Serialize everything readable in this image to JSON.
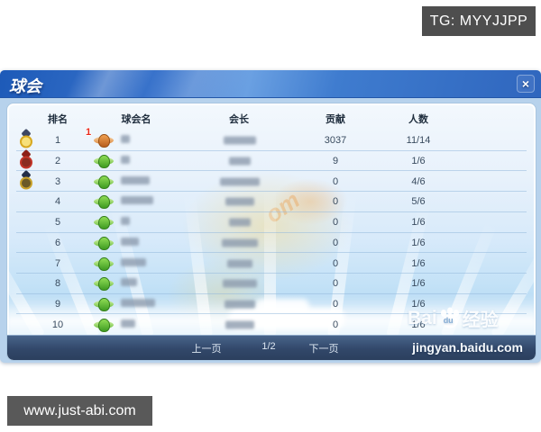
{
  "overlays": {
    "tg_label": "TG: MYYJJPP",
    "site_label": "www.just-abi.com"
  },
  "window": {
    "title": "球会",
    "close_label": "×"
  },
  "table": {
    "headers": [
      "排名",
      "球会名",
      "会长",
      "贡献",
      "人数"
    ],
    "rows": [
      {
        "rank": "1",
        "medal": "gold",
        "badge": "1",
        "icon": "orange",
        "name_blur_w": 10,
        "president_blur_w": 36,
        "contribution": "3037",
        "members": "11/14"
      },
      {
        "rank": "2",
        "medal": "red",
        "badge": "",
        "icon": "green",
        "name_blur_w": 10,
        "president_blur_w": 24,
        "contribution": "9",
        "members": "1/6"
      },
      {
        "rank": "3",
        "medal": "navy",
        "badge": "",
        "icon": "green",
        "name_blur_w": 32,
        "president_blur_w": 44,
        "contribution": "0",
        "members": "4/6"
      },
      {
        "rank": "4",
        "medal": "",
        "badge": "",
        "icon": "green",
        "name_blur_w": 36,
        "president_blur_w": 32,
        "contribution": "0",
        "members": "5/6"
      },
      {
        "rank": "5",
        "medal": "",
        "badge": "",
        "icon": "green",
        "name_blur_w": 10,
        "president_blur_w": 24,
        "contribution": "0",
        "members": "1/6"
      },
      {
        "rank": "6",
        "medal": "",
        "badge": "",
        "icon": "green",
        "name_blur_w": 20,
        "president_blur_w": 40,
        "contribution": "0",
        "members": "1/6"
      },
      {
        "rank": "7",
        "medal": "",
        "badge": "",
        "icon": "green",
        "name_blur_w": 28,
        "president_blur_w": 28,
        "contribution": "0",
        "members": "1/6"
      },
      {
        "rank": "8",
        "medal": "",
        "badge": "",
        "icon": "green",
        "name_blur_w": 18,
        "president_blur_w": 38,
        "contribution": "0",
        "members": "1/6"
      },
      {
        "rank": "9",
        "medal": "",
        "badge": "",
        "icon": "green",
        "name_blur_w": 38,
        "president_blur_w": 34,
        "contribution": "0",
        "members": "1/6"
      },
      {
        "rank": "10",
        "medal": "",
        "badge": "",
        "icon": "green",
        "name_blur_w": 16,
        "president_blur_w": 32,
        "contribution": "0",
        "members": "1/6"
      }
    ]
  },
  "pagination": {
    "prev": "上一页",
    "current": "1/2",
    "next": "下一页"
  },
  "watermark": {
    "brand_bai": "Bai",
    "brand_du": "du",
    "brand_suffix": "经验",
    "url": "jingyan.baidu.com"
  }
}
